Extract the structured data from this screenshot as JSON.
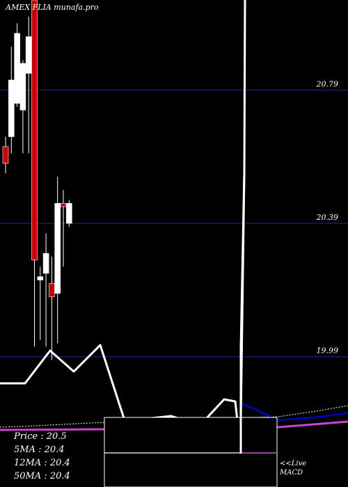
{
  "header": {
    "title": "AMEX  FLIA munafa.pro"
  },
  "legend": {
    "price": "Price   : 20.5",
    "ma5": "5MA : 20.4",
    "ma12": "12MA : 20.4",
    "ma50": "50MA : 20.4"
  },
  "macd_label": {
    "line1": "<<Live",
    "line2": "MACD"
  },
  "colors": {
    "background": "#000000",
    "gridline": "#1a1a66",
    "bear_candle": "#cc0000",
    "bull_candle": "#ffffff",
    "macd_signal": "#0000cc",
    "macd_hist": "#cc44cc"
  },
  "chart_data": {
    "type": "candlestick",
    "title": "AMEX  FLIA munafa.pro",
    "ylim": [
      19.86,
      21.06
    ],
    "y_ticks": [
      {
        "value": 20.79,
        "label": "20.79"
      },
      {
        "value": 20.39,
        "label": "20.39"
      },
      {
        "value": 19.99,
        "label": "19.99"
      }
    ],
    "grid": true,
    "candles": [
      {
        "open": 20.57,
        "close": 20.62,
        "high": 20.65,
        "low": 20.54,
        "color": "red"
      },
      {
        "open": 20.65,
        "close": 20.82,
        "high": 20.92,
        "low": 20.6,
        "color": "white"
      },
      {
        "open": 20.75,
        "close": 20.96,
        "high": 20.99,
        "low": 20.74,
        "color": "white"
      },
      {
        "open": 20.87,
        "close": 20.73,
        "high": 20.88,
        "low": 20.6,
        "color": "white"
      },
      {
        "open": 20.84,
        "close": 20.95,
        "high": 21.01,
        "low": 20.6,
        "color": "white"
      },
      {
        "open": 21.06,
        "close": 20.28,
        "high": 21.06,
        "low": 20.02,
        "color": "red"
      },
      {
        "open": 20.23,
        "close": 20.22,
        "high": 20.26,
        "low": 20.04,
        "color": "white"
      },
      {
        "open": 20.3,
        "close": 20.24,
        "high": 20.36,
        "low": 20.02,
        "color": "white"
      },
      {
        "open": 20.21,
        "close": 20.17,
        "high": 20.29,
        "low": 19.98,
        "color": "red"
      },
      {
        "open": 20.18,
        "close": 20.45,
        "high": 20.53,
        "low": 20.03,
        "color": "white"
      },
      {
        "open": 20.45,
        "close": 20.44,
        "high": 20.49,
        "low": 20.26,
        "color": "red"
      },
      {
        "open": 20.39,
        "close": 20.45,
        "high": 20.46,
        "low": 20.38,
        "color": "white"
      }
    ],
    "volume_line": [
      {
        "x": 0,
        "y": 551
      },
      {
        "x": 36,
        "y": 551
      },
      {
        "x": 72,
        "y": 504
      },
      {
        "x": 106,
        "y": 534
      },
      {
        "x": 144,
        "y": 496
      },
      {
        "x": 178,
        "y": 601
      },
      {
        "x": 218,
        "y": 601
      },
      {
        "x": 246,
        "y": 598
      },
      {
        "x": 258,
        "y": 602
      },
      {
        "x": 296,
        "y": 602
      },
      {
        "x": 322,
        "y": 574
      },
      {
        "x": 338,
        "y": 577
      },
      {
        "x": 346,
        "y": 652
      },
      {
        "x": 346,
        "y": 500
      },
      {
        "x": 351,
        "y": 248
      },
      {
        "x": 352,
        "y": 0
      }
    ],
    "macd_panel": {
      "signal": [
        {
          "x": 348,
          "y": 580
        },
        {
          "x": 400,
          "y": 604
        },
        {
          "x": 450,
          "y": 600
        },
        {
          "x": 500,
          "y": 594
        }
      ],
      "hist": [
        {
          "x": 0,
          "y": 618
        },
        {
          "x": 150,
          "y": 617
        },
        {
          "x": 400,
          "y": 614
        },
        {
          "x": 450,
          "y": 610
        },
        {
          "x": 500,
          "y": 606
        }
      ],
      "dotted": [
        {
          "x": 0,
          "y": 614
        },
        {
          "x": 30,
          "y": 613
        },
        {
          "x": 130,
          "y": 608
        },
        {
          "x": 400,
          "y": 599
        },
        {
          "x": 460,
          "y": 590
        },
        {
          "x": 500,
          "y": 583
        }
      ]
    }
  }
}
